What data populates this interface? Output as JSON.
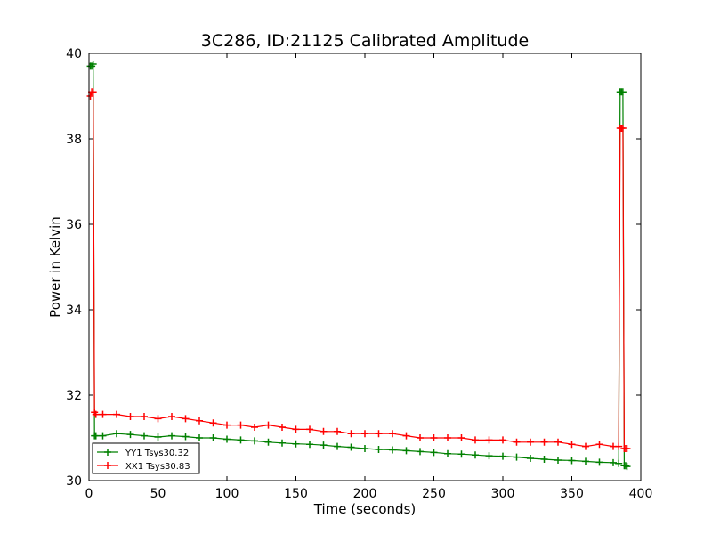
{
  "chart_data": {
    "type": "line",
    "title": "3C286, ID:21125 Calibrated Amplitude",
    "xlabel": "Time (seconds)",
    "ylabel": "Power in Kelvin",
    "xlim": [
      0,
      400
    ],
    "ylim": [
      30,
      40
    ],
    "xticks": [
      "0",
      "50",
      "100",
      "150",
      "200",
      "250",
      "300",
      "350",
      "400"
    ],
    "yticks": [
      "30",
      "32",
      "34",
      "36",
      "38",
      "40"
    ],
    "grid": false,
    "legend_position": "lower-left",
    "series": [
      {
        "name": "YY1 Tsys30.32",
        "color": "#008000",
        "x": [
          1,
          2,
          3,
          4,
          5,
          10,
          20,
          30,
          40,
          50,
          60,
          70,
          80,
          90,
          100,
          110,
          120,
          130,
          140,
          150,
          160,
          170,
          180,
          190,
          200,
          210,
          220,
          230,
          240,
          250,
          260,
          270,
          280,
          290,
          300,
          310,
          320,
          330,
          340,
          350,
          360,
          370,
          380,
          384,
          385,
          386,
          387,
          388,
          389,
          390
        ],
        "y": [
          39.7,
          39.7,
          39.75,
          31.05,
          31.05,
          31.05,
          31.1,
          31.08,
          31.05,
          31.02,
          31.05,
          31.03,
          31.0,
          31.0,
          30.97,
          30.95,
          30.93,
          30.9,
          30.88,
          30.86,
          30.85,
          30.83,
          30.8,
          30.78,
          30.75,
          30.73,
          30.72,
          30.7,
          30.68,
          30.66,
          30.63,
          30.62,
          30.6,
          30.58,
          30.57,
          30.55,
          30.52,
          30.5,
          30.48,
          30.47,
          30.45,
          30.43,
          30.42,
          30.4,
          39.1,
          39.1,
          39.1,
          30.35,
          30.35,
          30.33
        ]
      },
      {
        "name": "XX1 Tsys30.83",
        "color": "#ff0000",
        "x": [
          1,
          2,
          3,
          4,
          5,
          10,
          20,
          30,
          40,
          50,
          60,
          70,
          80,
          90,
          100,
          110,
          120,
          130,
          140,
          150,
          160,
          170,
          180,
          190,
          200,
          210,
          220,
          230,
          240,
          250,
          260,
          270,
          280,
          290,
          300,
          310,
          320,
          330,
          340,
          350,
          360,
          370,
          380,
          384,
          385,
          386,
          387,
          388,
          389,
          390
        ],
        "y": [
          39.0,
          39.1,
          39.1,
          31.6,
          31.55,
          31.55,
          31.55,
          31.5,
          31.5,
          31.45,
          31.5,
          31.45,
          31.4,
          31.35,
          31.3,
          31.3,
          31.25,
          31.3,
          31.25,
          31.2,
          31.2,
          31.15,
          31.15,
          31.1,
          31.1,
          31.1,
          31.1,
          31.05,
          31.0,
          31.0,
          31.0,
          31.0,
          30.95,
          30.95,
          30.95,
          30.9,
          30.9,
          30.9,
          30.9,
          30.85,
          30.8,
          30.85,
          30.8,
          30.8,
          38.25,
          38.25,
          38.25,
          30.75,
          30.75,
          30.75
        ]
      }
    ]
  }
}
